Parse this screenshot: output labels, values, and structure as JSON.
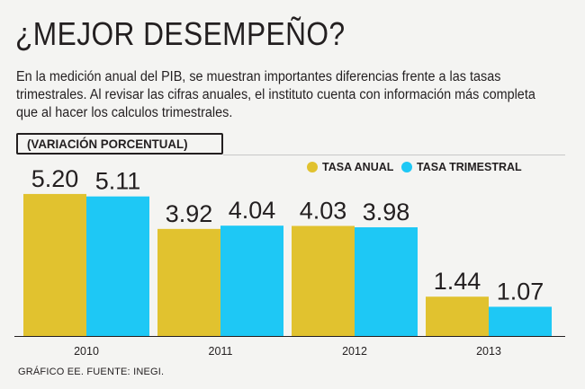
{
  "header": {
    "title": "¿MEJOR DESEMPEÑO?",
    "subtitle": "En la medición anual del PIB, se muestran importantes diferencias frente a las tasas trimestrales. Al revisar las cifras anuales, el instituto cuenta con información más completa que al hacer los calculos trimestrales."
  },
  "unit_label": "(VARIACIÓN PORCENTUAL)",
  "footer": {
    "source": "GRÁFICO EE. FUENTE: INEGI."
  },
  "colors": {
    "annual": "#e1c22f",
    "quarterly": "#1ec8f5",
    "text": "#231f20",
    "background": "#f4f4f2"
  },
  "chart_data": {
    "type": "bar",
    "categories": [
      "2010",
      "2011",
      "2012",
      "2013"
    ],
    "series": [
      {
        "name": "TASA ANUAL",
        "values": [
          5.2,
          3.92,
          4.03,
          1.44
        ],
        "labels": [
          "5.20",
          "3.92",
          "4.03",
          "1.44"
        ],
        "color": "#e1c22f"
      },
      {
        "name": "TASA TRIMESTRAL",
        "values": [
          5.11,
          4.04,
          3.98,
          1.07
        ],
        "labels": [
          "5.11",
          "4.04",
          "3.98",
          "1.07"
        ],
        "color": "#1ec8f5"
      }
    ],
    "ylim": [
      0,
      5.5
    ],
    "legend_position": "top-right",
    "grid": false
  }
}
